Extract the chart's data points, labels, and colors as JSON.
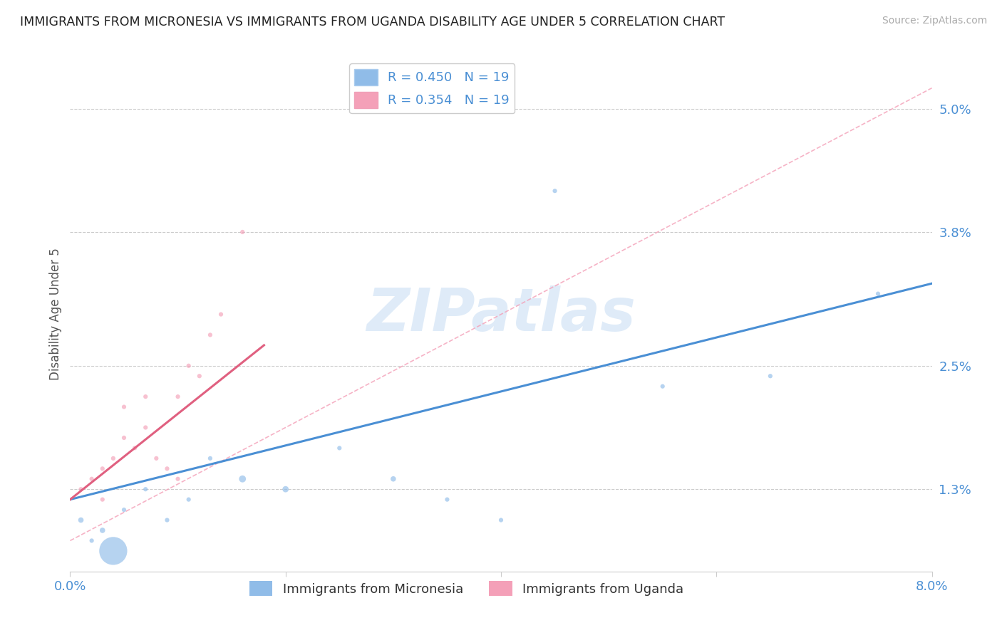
{
  "title": "IMMIGRANTS FROM MICRONESIA VS IMMIGRANTS FROM UGANDA DISABILITY AGE UNDER 5 CORRELATION CHART",
  "source": "Source: ZipAtlas.com",
  "ylabel": "Disability Age Under 5",
  "watermark": "ZIPatlas",
  "R_micronesia": 0.45,
  "N_micronesia": 19,
  "R_uganda": 0.354,
  "N_uganda": 19,
  "xlim": [
    0.0,
    0.08
  ],
  "ylim": [
    0.005,
    0.055
  ],
  "yticks": [
    0.013,
    0.025,
    0.038,
    0.05
  ],
  "ytick_labels": [
    "1.3%",
    "2.5%",
    "3.8%",
    "5.0%"
  ],
  "xticks": [
    0.0,
    0.02,
    0.04,
    0.06,
    0.08
  ],
  "xtick_labels": [
    "0.0%",
    "",
    "",
    "",
    "8.0%"
  ],
  "color_micronesia": "#90bce8",
  "color_uganda": "#f4a0b8",
  "color_trend_micronesia": "#4a8fd4",
  "color_trend_uganda": "#e06080",
  "micronesia_x": [
    0.001,
    0.002,
    0.003,
    0.004,
    0.005,
    0.007,
    0.009,
    0.011,
    0.013,
    0.016,
    0.02,
    0.025,
    0.03,
    0.035,
    0.04,
    0.045,
    0.055,
    0.065,
    0.075
  ],
  "micronesia_y": [
    0.01,
    0.008,
    0.009,
    0.007,
    0.011,
    0.013,
    0.01,
    0.012,
    0.016,
    0.014,
    0.013,
    0.017,
    0.014,
    0.012,
    0.01,
    0.042,
    0.023,
    0.024,
    0.032
  ],
  "micronesia_size": [
    30,
    20,
    30,
    800,
    20,
    20,
    20,
    20,
    20,
    50,
    40,
    20,
    30,
    20,
    20,
    20,
    20,
    20,
    20
  ],
  "uganda_x": [
    0.001,
    0.002,
    0.003,
    0.003,
    0.004,
    0.005,
    0.005,
    0.006,
    0.007,
    0.007,
    0.008,
    0.009,
    0.01,
    0.01,
    0.011,
    0.012,
    0.013,
    0.014,
    0.016
  ],
  "uganda_y": [
    0.013,
    0.014,
    0.015,
    0.012,
    0.016,
    0.018,
    0.021,
    0.017,
    0.019,
    0.022,
    0.016,
    0.015,
    0.014,
    0.022,
    0.025,
    0.024,
    0.028,
    0.03,
    0.038
  ],
  "uganda_size": [
    20,
    20,
    20,
    20,
    20,
    20,
    20,
    20,
    20,
    20,
    20,
    20,
    20,
    20,
    20,
    20,
    20,
    20,
    20
  ],
  "background_color": "#ffffff",
  "grid_color": "#cccccc"
}
